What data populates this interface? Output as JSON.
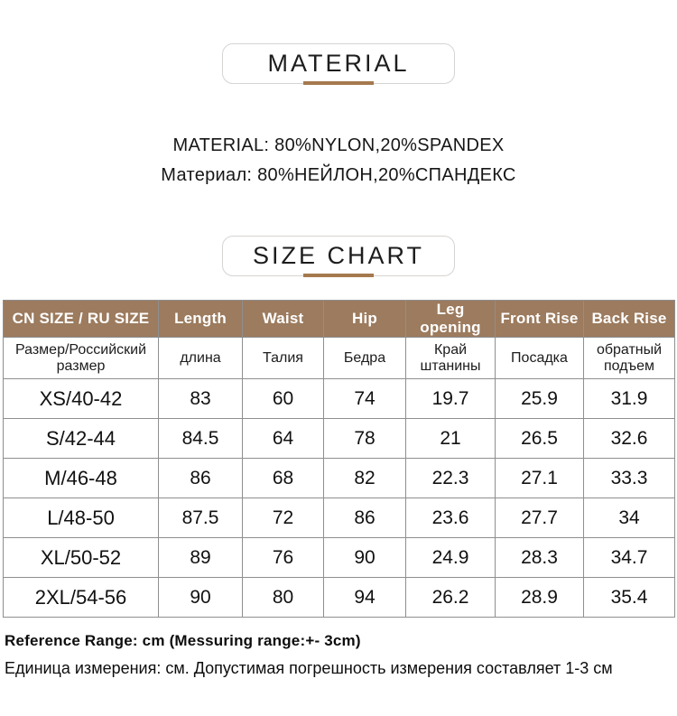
{
  "material_section": {
    "badge_label": "MATERIAL",
    "composition_en": "MATERIAL: 80%NYLON,20%SPANDEX",
    "composition_ru": "Материал: 80%НЕЙЛОН,20%СПАНДЕКС"
  },
  "size_chart_section": {
    "badge_label": "SIZE CHART"
  },
  "size_table": {
    "header": [
      "CN SIZE / RU SIZE",
      "Length",
      "Waist",
      "Hip",
      "Leg opening",
      "Front Rise",
      "Back Rise"
    ],
    "subheader": [
      "Размер/Российский размер",
      "длина",
      "Талия",
      "Бедра",
      "Край штанины",
      "Посадка",
      "обратный подъем"
    ],
    "rows": [
      [
        "XS/40-42",
        "83",
        "60",
        "74",
        "19.7",
        "25.9",
        "31.9"
      ],
      [
        "S/42-44",
        "84.5",
        "64",
        "78",
        "21",
        "26.5",
        "32.6"
      ],
      [
        "M/46-48",
        "86",
        "68",
        "82",
        "22.3",
        "27.1",
        "33.3"
      ],
      [
        "L/48-50",
        "87.5",
        "72",
        "86",
        "23.6",
        "27.7",
        "34"
      ],
      [
        "XL/50-52",
        "89",
        "76",
        "90",
        "24.9",
        "28.3",
        "34.7"
      ],
      [
        "2XL/54-56",
        "90",
        "80",
        "94",
        "26.2",
        "28.9",
        "35.4"
      ]
    ]
  },
  "footer": {
    "reference_en": "Reference Range: cm (Messuring range:+- 3cm)",
    "reference_ru": "Единица измерения: см. Допустимая погрешность измерения составляет 1-3 см"
  },
  "colors": {
    "table_header_bg": "#9c7b5e",
    "accent_bar": "#a5794e",
    "table_border": "#8f8f8f",
    "badge_border": "#d6d4d2"
  }
}
